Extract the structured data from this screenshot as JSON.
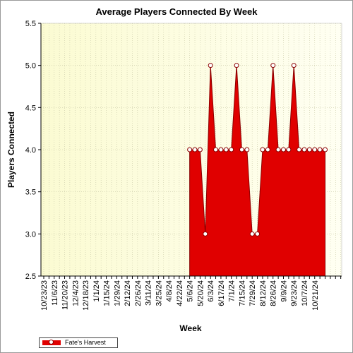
{
  "chart_data": {
    "type": "area",
    "title": "Average Players Connected By Week",
    "xlabel": "Week",
    "ylabel": "Players Connected",
    "ylim": [
      2.5,
      5.5
    ],
    "yticks": [
      2.5,
      3.0,
      3.5,
      4.0,
      4.5,
      5.0,
      5.5
    ],
    "grid": true,
    "legend": "bottom-left",
    "categories": [
      "10/23/23",
      "11/6/23",
      "11/20/23",
      "12/4/23",
      "12/18/23",
      "1/1/24",
      "1/15/24",
      "1/29/24",
      "2/12/24",
      "2/26/24",
      "3/11/24",
      "3/25/24",
      "4/8/24",
      "4/22/24",
      "5/6/24",
      "5/20/24",
      "6/3/24",
      "6/17/24",
      "7/1/24",
      "7/15/24",
      "7/29/24",
      "8/12/24",
      "8/26/24",
      "9/9/24",
      "9/23/24",
      "10/7/24",
      "10/21/24"
    ],
    "series": [
      {
        "name": "Fate's Harvest",
        "color": "#e00000",
        "x_start_week": 28,
        "values": [
          4,
          4,
          4,
          3,
          5,
          4,
          4,
          4,
          4,
          5,
          4,
          4,
          3,
          3,
          4,
          4,
          5,
          4,
          4,
          4,
          5,
          4,
          4,
          4,
          4,
          4,
          4
        ]
      }
    ]
  }
}
